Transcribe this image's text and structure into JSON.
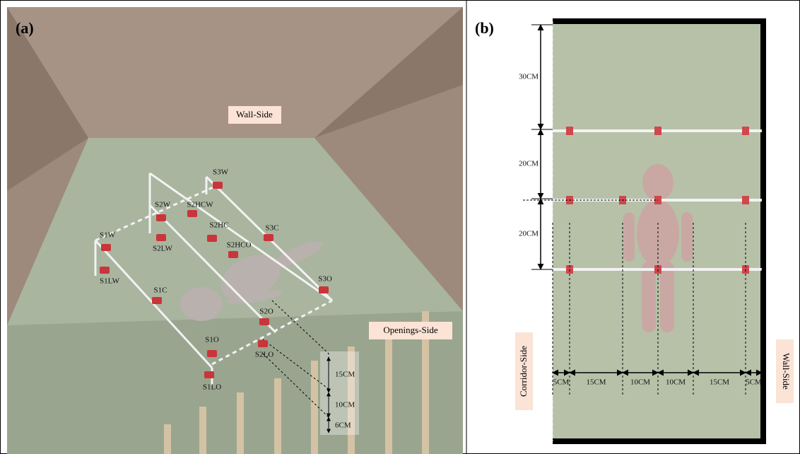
{
  "panel_a": {
    "label": "(a)",
    "wall_label": "Wall-Side",
    "openings_label": "Openings-Side",
    "sensors": [
      "S3W",
      "S2W",
      "S2HCW",
      "S1W",
      "S2HC",
      "S3C",
      "S2LW",
      "S2HCO",
      "S1LW",
      "S3O",
      "S1C",
      "S2O",
      "S1O",
      "S2LO",
      "S1LO"
    ],
    "dimensions": [
      "15CM",
      "10CM",
      "6CM"
    ]
  },
  "panel_b": {
    "label": "(b)",
    "vertical_dimensions": [
      "30CM",
      "20CM",
      "20CM"
    ],
    "horizontal_dimensions": [
      "5CM",
      "15CM",
      "10CM",
      "10CM",
      "15CM",
      "5CM"
    ],
    "left_label": "Corridor-Side",
    "right_label": "Wall-Side"
  }
}
